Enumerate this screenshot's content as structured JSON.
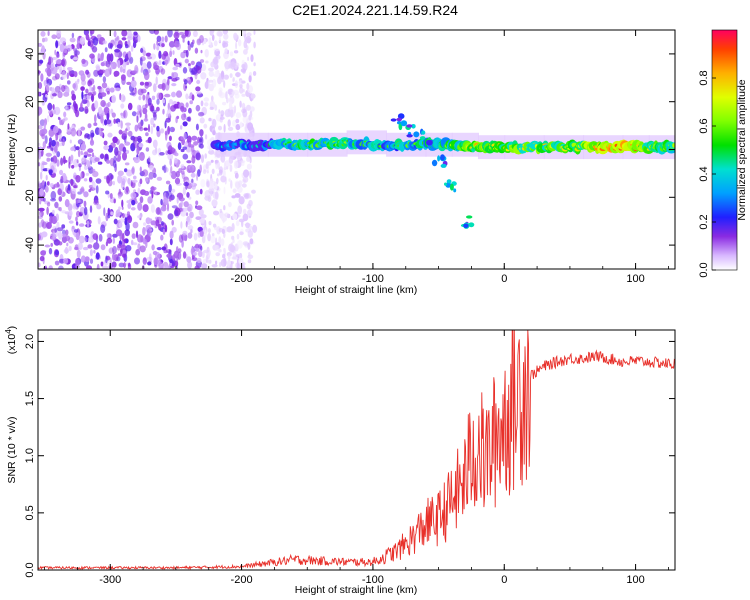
{
  "title": "C2E1.2024.221.14.59.R24",
  "chart_data": [
    {
      "type": "heatmap",
      "xlabel": "Height of straight line (km)",
      "ylabel": "Frequency (Hz)",
      "xlim": [
        -355,
        130
      ],
      "ylim": [
        -50,
        50
      ],
      "xticks": [
        -300,
        -200,
        -100,
        0,
        100
      ],
      "yticks": [
        -40,
        -20,
        0,
        20,
        40
      ],
      "xtick_labels": [
        "-300",
        "-200",
        "-100",
        "0",
        "100"
      ],
      "ytick_labels": [
        "-40",
        "-20",
        "0",
        "20",
        "40"
      ],
      "colorbar": {
        "label": "Normalized spectral amplitude",
        "range": [
          0,
          1
        ],
        "ticks": [
          0.0,
          0.2,
          0.4,
          0.6,
          0.8
        ],
        "tick_labels": [
          "0.0",
          "0.2",
          "0.4",
          "0.6",
          "0.8"
        ]
      },
      "features": {
        "noise_region_x": [
          -355,
          -190
        ],
        "main_line": [
          {
            "x": -220,
            "y": 2,
            "amp": 0.3
          },
          {
            "x": -180,
            "y": 2,
            "amp": 0.45
          },
          {
            "x": -150,
            "y": 2,
            "amp": 0.6
          },
          {
            "x": -120,
            "y": 3,
            "amp": 0.55
          },
          {
            "x": -90,
            "y": 2,
            "amp": 0.5
          },
          {
            "x": -60,
            "y": 2,
            "amp": 0.55
          },
          {
            "x": -40,
            "y": 2,
            "amp": 0.6
          },
          {
            "x": -20,
            "y": 1,
            "amp": 0.75
          },
          {
            "x": 0,
            "y": 1,
            "amp": 0.7
          },
          {
            "x": 30,
            "y": 1,
            "amp": 0.7
          },
          {
            "x": 60,
            "y": 1,
            "amp": 0.72
          },
          {
            "x": 90,
            "y": 1,
            "amp": 0.95
          },
          {
            "x": 110,
            "y": 1,
            "amp": 0.7
          },
          {
            "x": 130,
            "y": 1,
            "amp": 0.6
          }
        ],
        "branch_up": [
          {
            "x": -80,
            "y": 12
          },
          {
            "x": -70,
            "y": 8
          },
          {
            "x": -60,
            "y": 5
          }
        ],
        "branch_down": [
          {
            "x": -50,
            "y": -5
          },
          {
            "x": -40,
            "y": -15
          },
          {
            "x": -30,
            "y": -30
          }
        ]
      }
    },
    {
      "type": "line",
      "xlabel": "Height of straight line (km)",
      "ylabel": "SNR (10 * v/v)",
      "y_multiplier": "(x10",
      "y_multiplier_exp": "4",
      "y_multiplier_close": ")",
      "xlim": [
        -355,
        130
      ],
      "ylim": [
        0,
        2.1
      ],
      "xticks": [
        -300,
        -200,
        -100,
        0,
        100
      ],
      "yticks": [
        0.0,
        0.5,
        1.0,
        1.5,
        2.0
      ],
      "xtick_labels": [
        "-300",
        "-200",
        "-100",
        "0",
        "100"
      ],
      "ytick_labels": [
        "0.0",
        "0.5",
        "1.0",
        "1.5",
        "2.0"
      ],
      "color": "#e8302a",
      "series": [
        {
          "x": [
            -355,
            -300,
            -250,
            -200,
            -180,
            -160,
            -140,
            -120,
            -100,
            -90,
            -80,
            -70,
            -60,
            -50,
            -40,
            -30,
            -25,
            -20,
            -15,
            -10,
            -5,
            0,
            10,
            20,
            30,
            40,
            50,
            60,
            70,
            80,
            90,
            100,
            110,
            120,
            130
          ],
          "values": [
            0.02,
            0.02,
            0.02,
            0.03,
            0.06,
            0.09,
            0.08,
            0.07,
            0.07,
            0.12,
            0.18,
            0.28,
            0.4,
            0.45,
            0.6,
            0.8,
            1.0,
            1.1,
            0.95,
            1.05,
            1.2,
            1.3,
            1.55,
            1.7,
            1.78,
            1.82,
            1.85,
            1.85,
            1.87,
            1.85,
            1.82,
            1.83,
            1.82,
            1.81,
            1.8
          ]
        }
      ]
    }
  ]
}
